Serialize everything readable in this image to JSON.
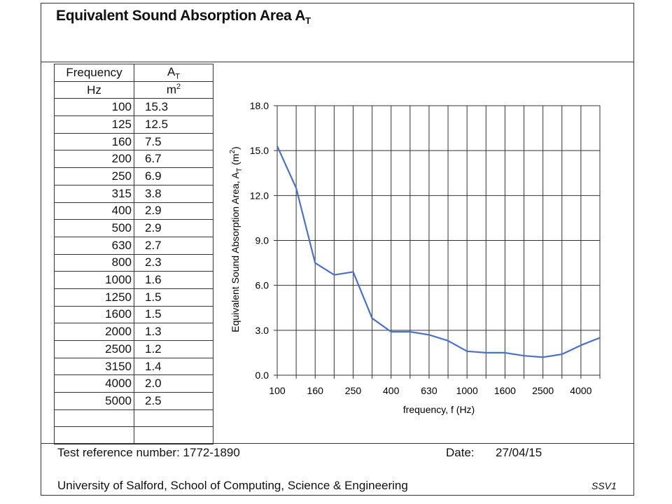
{
  "header": {
    "title": "Equivalent Sound Absorption Area A",
    "title_sub": "T"
  },
  "table": {
    "col1_header": "Frequency",
    "col1_unit": "Hz",
    "col2_header": "A",
    "col2_header_sub": "T",
    "col2_unit": "m",
    "col2_unit_sup": "2",
    "rows": [
      [
        "100",
        "15.3"
      ],
      [
        "125",
        "12.5"
      ],
      [
        "160",
        "7.5"
      ],
      [
        "200",
        "6.7"
      ],
      [
        "250",
        "6.9"
      ],
      [
        "315",
        "3.8"
      ],
      [
        "400",
        "2.9"
      ],
      [
        "500",
        "2.9"
      ],
      [
        "630",
        "2.7"
      ],
      [
        "800",
        "2.3"
      ],
      [
        "1000",
        "1.6"
      ],
      [
        "1250",
        "1.5"
      ],
      [
        "1600",
        "1.5"
      ],
      [
        "2000",
        "1.3"
      ],
      [
        "2500",
        "1.2"
      ],
      [
        "3150",
        "1.4"
      ],
      [
        "4000",
        "2.0"
      ],
      [
        "5000",
        "2.5"
      ]
    ]
  },
  "chart_data": {
    "type": "line",
    "x": [
      "100",
      "125",
      "160",
      "200",
      "250",
      "315",
      "400",
      "500",
      "630",
      "800",
      "1000",
      "1250",
      "1600",
      "2000",
      "2500",
      "3150",
      "4000",
      "5000"
    ],
    "x_tick_labels": [
      "100",
      "160",
      "250",
      "400",
      "630",
      "1000",
      "1600",
      "2500",
      "4000"
    ],
    "series": [
      {
        "values": [
          15.3,
          12.5,
          7.5,
          6.7,
          6.9,
          3.8,
          2.9,
          2.9,
          2.7,
          2.3,
          1.6,
          1.5,
          1.5,
          1.3,
          1.2,
          1.4,
          2.0,
          2.5
        ]
      }
    ],
    "ylabel": "Equivalent Sound Absorption Area, A",
    "ylabel_sub": "T",
    "ylabel_unit": "(m",
    "ylabel_unit_sup": "2",
    "ylabel_unit_close": ")",
    "xlabel": "frequency, f (Hz)",
    "ylim": [
      0,
      18
    ],
    "y_ticks": [
      "0.0",
      "3.0",
      "6.0",
      "9.0",
      "12.0",
      "15.0",
      "18.0"
    ],
    "grid": true,
    "line_color": "#4a72c4"
  },
  "footer": {
    "test_ref": "Test reference number: 1772-1890",
    "date_label": "Date:",
    "date_value": "27/04/15",
    "institution": "University of Salford, School of Computing, Science & Engineering",
    "code": "SSV1"
  }
}
